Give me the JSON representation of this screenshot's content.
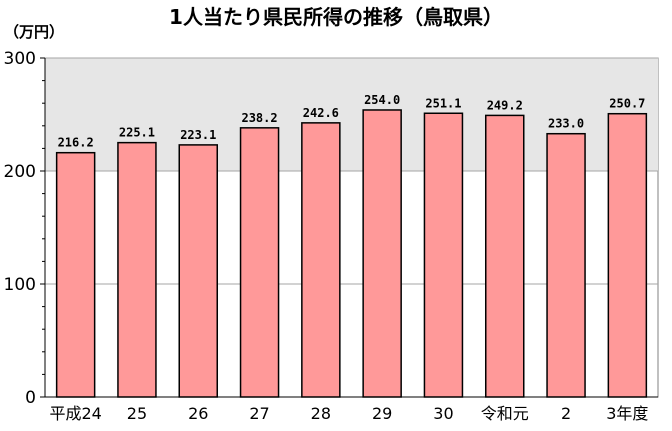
{
  "chart_data": {
    "type": "bar",
    "title": "1人当たり県民所得の推移（鳥取県）",
    "ylabel": "（万円）",
    "xlabel": "",
    "categories": [
      "平成24",
      "25",
      "26",
      "27",
      "28",
      "29",
      "30",
      "令和元",
      "2",
      "3年度"
    ],
    "values": [
      216.2,
      225.1,
      223.1,
      238.2,
      242.6,
      254.0,
      251.1,
      249.2,
      233.0,
      250.7
    ],
    "value_labels": [
      "216.2",
      "225.1",
      "223.1",
      "238.2",
      "242.6",
      "254.0",
      "251.1",
      "249.2",
      "233.0",
      "250.7"
    ],
    "ylim": [
      0,
      300
    ],
    "yticks": [
      0,
      100,
      200,
      300
    ],
    "grid": true,
    "legend": "none",
    "colors": {
      "bar_fill": "#ff9999",
      "bar_stroke": "#000000",
      "plot_background": "#e6e6e6",
      "gridline": "#a6a6a6"
    }
  }
}
